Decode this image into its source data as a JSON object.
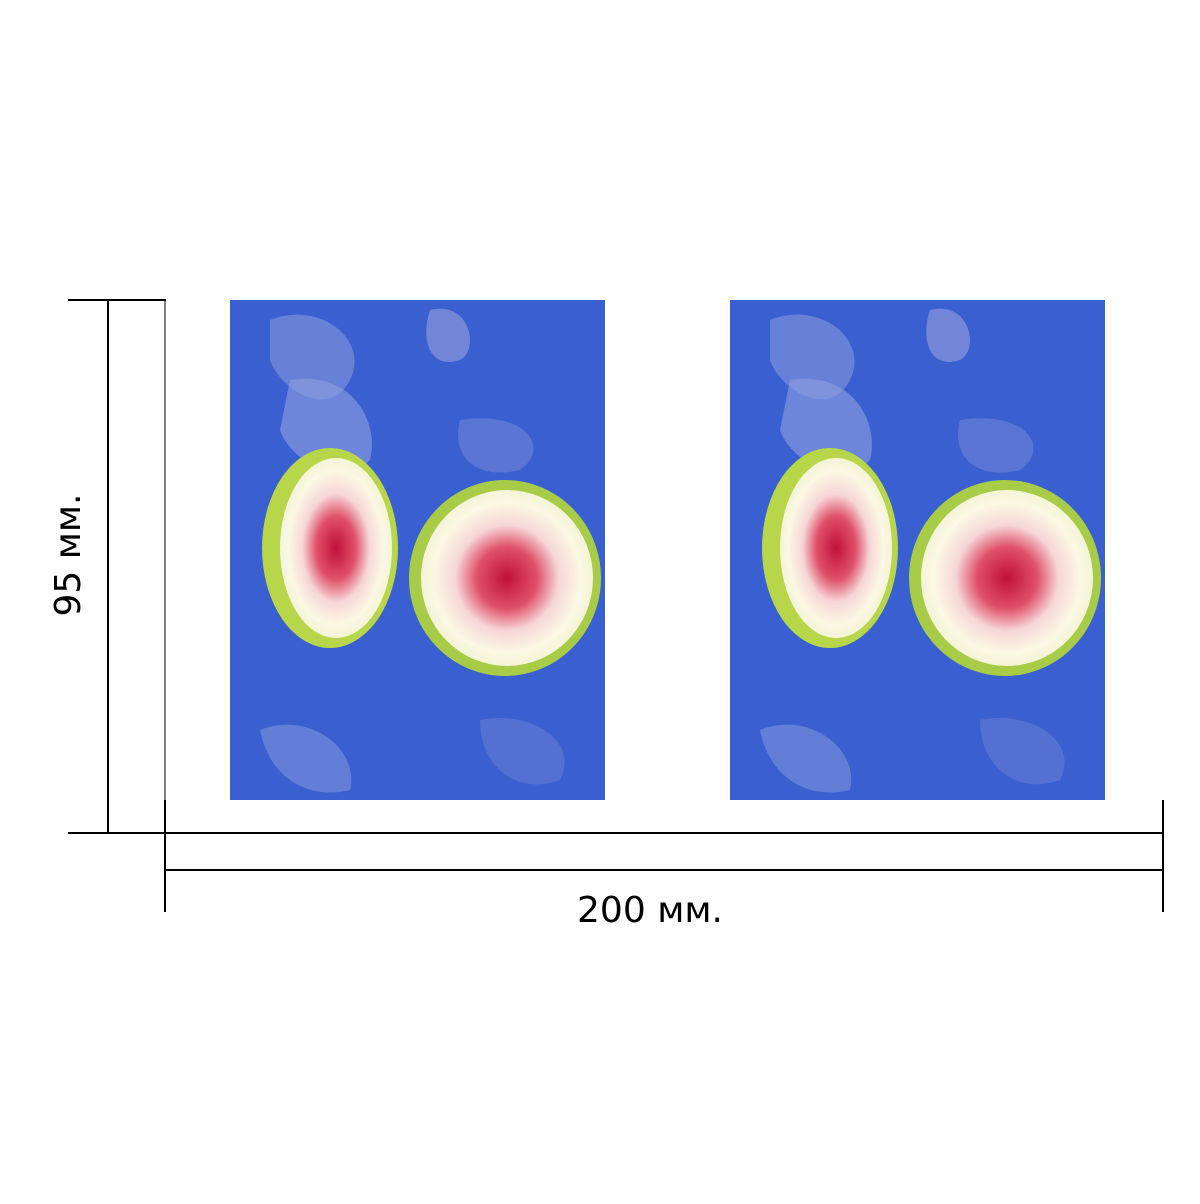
{
  "labels": {
    "height": "95 мм.",
    "width": "200 мм."
  }
}
